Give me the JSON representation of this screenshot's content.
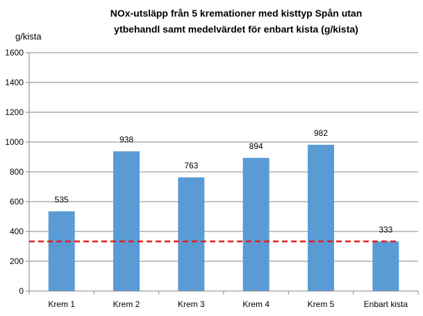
{
  "chart_data": {
    "type": "bar",
    "title_lines": [
      "NOx-utsläpp från 5 kremationer med kisttyp Spån utan",
      "ytbehandl samt medelvärdet för enbart kista (g/kista)"
    ],
    "ylabel": "g/kista",
    "xlabel": "",
    "categories": [
      "Krem 1",
      "Krem 2",
      "Krem 3",
      "Krem 4",
      "Krem 5",
      "Enbart kista"
    ],
    "values": [
      535,
      938,
      763,
      894,
      982,
      333
    ],
    "data_labels": [
      "535",
      "938",
      "763",
      "894",
      "982",
      "333"
    ],
    "yticks": [
      "0",
      "200",
      "400",
      "600",
      "800",
      "1000",
      "1200",
      "1400",
      "1600"
    ],
    "ylim": [
      0,
      1600
    ],
    "reference_line": {
      "value": 333,
      "style": "dashed",
      "color": "#e31a1c"
    },
    "bar_color": "#5b9bd5",
    "grid": true,
    "legend": "none"
  }
}
